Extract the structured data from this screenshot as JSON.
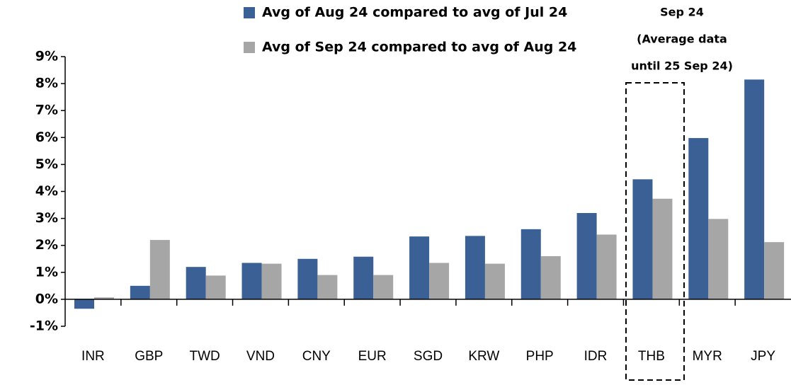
{
  "chart_data": {
    "type": "bar",
    "categories": [
      "INR",
      "GBP",
      "TWD",
      "VND",
      "CNY",
      "EUR",
      "SGD",
      "KRW",
      "PHP",
      "IDR",
      "THB",
      "MYR",
      "JPY"
    ],
    "series": [
      {
        "name": "Avg of Aug 24 compared to avg of Jul 24",
        "color": "#3a6095",
        "values": [
          -0.35,
          0.5,
          1.2,
          1.35,
          1.5,
          1.58,
          2.33,
          2.35,
          2.6,
          3.2,
          4.45,
          5.98,
          8.15
        ]
      },
      {
        "name": "Avg of Sep 24 compared to avg of Aug 24",
        "color": "#a6a6a6",
        "values": [
          0.07,
          2.2,
          0.88,
          1.32,
          0.9,
          0.9,
          1.35,
          1.32,
          1.6,
          2.4,
          3.73,
          2.98,
          2.12
        ]
      }
    ],
    "ylim": [
      -1,
      9
    ],
    "yticks": [
      {
        "value": -1,
        "label": "-1%"
      },
      {
        "value": 0,
        "label": "0%"
      },
      {
        "value": 1,
        "label": "1%"
      },
      {
        "value": 2,
        "label": "2%"
      },
      {
        "value": 3,
        "label": "3%"
      },
      {
        "value": 4,
        "label": "4%"
      },
      {
        "value": 5,
        "label": "5%"
      },
      {
        "value": 6,
        "label": "6%"
      },
      {
        "value": 7,
        "label": "7%"
      },
      {
        "value": 8,
        "label": "8%"
      },
      {
        "value": 9,
        "label": "9%"
      }
    ],
    "grid": false,
    "annotation": [
      "Sep 24",
      "(Average data",
      "until 25 Sep 24)"
    ]
  }
}
